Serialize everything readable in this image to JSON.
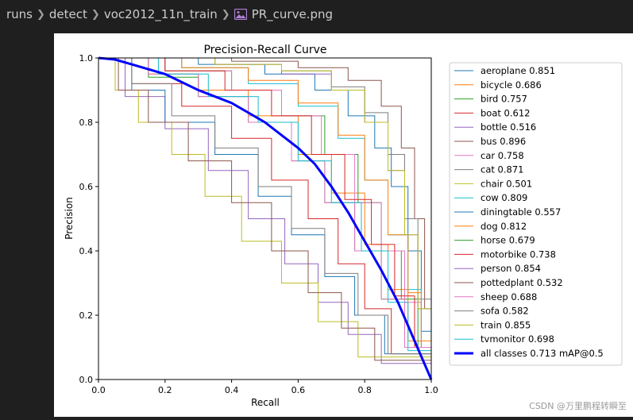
{
  "breadcrumb": {
    "items": [
      "runs",
      "detect",
      "voc2012_11n_train"
    ],
    "file": "PR_curve.png",
    "file_icon": "image-file-icon"
  },
  "watermark": "CSDN @万里鹏程转瞬至",
  "chart_data": {
    "type": "line",
    "title": "Precision-Recall Curve",
    "xlabel": "Recall",
    "ylabel": "Precision",
    "xlim": [
      0,
      1
    ],
    "ylim": [
      0,
      1
    ],
    "xticks": [
      "0.0",
      "0.2",
      "0.4",
      "0.6",
      "0.8",
      "1.0"
    ],
    "yticks": [
      "0.0",
      "0.2",
      "0.4",
      "0.6",
      "0.8",
      "1.0"
    ],
    "grid": false,
    "legend_position": "outside-right",
    "series": [
      {
        "name": "aeroplane 0.851",
        "color": "#1f77b4",
        "x": [
          0,
          0.3,
          0.5,
          0.65,
          0.75,
          0.83,
          0.88,
          0.93,
          0.97,
          1.0
        ],
        "y": [
          1,
          0.98,
          0.95,
          0.9,
          0.82,
          0.72,
          0.6,
          0.4,
          0.15,
          0.0
        ]
      },
      {
        "name": "bicycle 0.686",
        "color": "#ff7f0e",
        "x": [
          0,
          0.15,
          0.3,
          0.45,
          0.6,
          0.7,
          0.8,
          0.87,
          0.93,
          1.0
        ],
        "y": [
          1,
          0.95,
          0.9,
          0.82,
          0.7,
          0.58,
          0.42,
          0.28,
          0.12,
          0.0
        ]
      },
      {
        "name": "bird 0.757",
        "color": "#2ca02c",
        "x": [
          0,
          0.2,
          0.4,
          0.55,
          0.68,
          0.78,
          0.85,
          0.91,
          0.96,
          1.0
        ],
        "y": [
          1,
          0.96,
          0.9,
          0.82,
          0.7,
          0.55,
          0.4,
          0.25,
          0.1,
          0.0
        ]
      },
      {
        "name": "boat 0.612",
        "color": "#d62728",
        "x": [
          0,
          0.1,
          0.25,
          0.4,
          0.52,
          0.63,
          0.72,
          0.8,
          0.88,
          1.0
        ],
        "y": [
          1,
          0.92,
          0.85,
          0.75,
          0.62,
          0.5,
          0.36,
          0.22,
          0.08,
          0.0
        ]
      },
      {
        "name": "bottle 0.516",
        "color": "#9467bd",
        "x": [
          0,
          0.08,
          0.2,
          0.33,
          0.45,
          0.56,
          0.66,
          0.75,
          0.85,
          1.0
        ],
        "y": [
          1,
          0.88,
          0.78,
          0.65,
          0.5,
          0.36,
          0.24,
          0.14,
          0.05,
          0.0
        ]
      },
      {
        "name": "bus 0.896",
        "color": "#8c564b",
        "x": [
          0,
          0.4,
          0.6,
          0.75,
          0.85,
          0.91,
          0.95,
          0.98,
          1.0
        ],
        "y": [
          1,
          0.99,
          0.97,
          0.93,
          0.85,
          0.72,
          0.5,
          0.22,
          0.0
        ]
      },
      {
        "name": "car 0.758",
        "color": "#e377c2",
        "x": [
          0,
          0.2,
          0.4,
          0.55,
          0.67,
          0.77,
          0.85,
          0.92,
          0.97,
          1.0
        ],
        "y": [
          1,
          0.96,
          0.9,
          0.82,
          0.7,
          0.55,
          0.4,
          0.24,
          0.1,
          0.0
        ]
      },
      {
        "name": "cat 0.871",
        "color": "#7f7f7f",
        "x": [
          0,
          0.35,
          0.55,
          0.7,
          0.8,
          0.87,
          0.92,
          0.96,
          1.0
        ],
        "y": [
          1,
          0.98,
          0.96,
          0.91,
          0.83,
          0.7,
          0.5,
          0.25,
          0.0
        ]
      },
      {
        "name": "chair 0.501",
        "color": "#bcbd22",
        "x": [
          0,
          0.05,
          0.12,
          0.22,
          0.32,
          0.43,
          0.55,
          0.66,
          0.78,
          1.0
        ],
        "y": [
          1,
          0.9,
          0.8,
          0.7,
          0.57,
          0.43,
          0.3,
          0.18,
          0.07,
          0.0
        ]
      },
      {
        "name": "cow 0.809",
        "color": "#17becf",
        "x": [
          0,
          0.25,
          0.45,
          0.6,
          0.72,
          0.8,
          0.87,
          0.93,
          0.97,
          1.0
        ],
        "y": [
          1,
          0.97,
          0.92,
          0.85,
          0.75,
          0.62,
          0.45,
          0.28,
          0.1,
          0.0
        ]
      },
      {
        "name": "diningtable 0.557",
        "color": "#1f77b4",
        "x": [
          0,
          0.1,
          0.2,
          0.35,
          0.48,
          0.58,
          0.68,
          0.77,
          0.86,
          1.0
        ],
        "y": [
          1,
          0.9,
          0.8,
          0.7,
          0.57,
          0.45,
          0.32,
          0.2,
          0.08,
          0.0
        ]
      },
      {
        "name": "dog 0.812",
        "color": "#ff7f0e",
        "x": [
          0,
          0.25,
          0.45,
          0.6,
          0.72,
          0.8,
          0.87,
          0.93,
          0.97,
          1.0
        ],
        "y": [
          1,
          0.97,
          0.93,
          0.86,
          0.76,
          0.62,
          0.45,
          0.27,
          0.1,
          0.0
        ]
      },
      {
        "name": "horse 0.679",
        "color": "#2ca02c",
        "x": [
          0,
          0.15,
          0.3,
          0.45,
          0.58,
          0.68,
          0.77,
          0.85,
          0.92,
          1.0
        ],
        "y": [
          1,
          0.94,
          0.88,
          0.8,
          0.68,
          0.55,
          0.4,
          0.25,
          0.1,
          0.0
        ]
      },
      {
        "name": "motorbike 0.738",
        "color": "#d62728",
        "x": [
          0,
          0.2,
          0.38,
          0.52,
          0.64,
          0.74,
          0.82,
          0.89,
          0.95,
          1.0
        ],
        "y": [
          1,
          0.96,
          0.9,
          0.82,
          0.7,
          0.56,
          0.42,
          0.26,
          0.1,
          0.0
        ]
      },
      {
        "name": "person 0.854",
        "color": "#9467bd",
        "x": [
          0,
          0.35,
          0.55,
          0.7,
          0.8,
          0.87,
          0.92,
          0.96,
          1.0
        ],
        "y": [
          1,
          0.98,
          0.95,
          0.9,
          0.8,
          0.65,
          0.45,
          0.22,
          0.0
        ]
      },
      {
        "name": "pottedplant 0.532",
        "color": "#8c564b",
        "x": [
          0,
          0.06,
          0.15,
          0.27,
          0.4,
          0.52,
          0.63,
          0.73,
          0.83,
          1.0
        ],
        "y": [
          1,
          0.9,
          0.8,
          0.68,
          0.55,
          0.4,
          0.27,
          0.16,
          0.06,
          0.0
        ]
      },
      {
        "name": "sheep 0.688",
        "color": "#e377c2",
        "x": [
          0,
          0.15,
          0.3,
          0.45,
          0.58,
          0.68,
          0.77,
          0.85,
          0.92,
          1.0
        ],
        "y": [
          1,
          0.95,
          0.88,
          0.8,
          0.68,
          0.55,
          0.4,
          0.25,
          0.1,
          0.0
        ]
      },
      {
        "name": "sofa 0.582",
        "color": "#7f7f7f",
        "x": [
          0,
          0.1,
          0.22,
          0.35,
          0.48,
          0.58,
          0.68,
          0.78,
          0.87,
          1.0
        ],
        "y": [
          1,
          0.92,
          0.82,
          0.72,
          0.6,
          0.47,
          0.33,
          0.2,
          0.08,
          0.0
        ]
      },
      {
        "name": "train 0.855",
        "color": "#bcbd22",
        "x": [
          0,
          0.35,
          0.55,
          0.7,
          0.8,
          0.87,
          0.92,
          0.96,
          1.0
        ],
        "y": [
          1,
          0.98,
          0.96,
          0.9,
          0.8,
          0.65,
          0.45,
          0.22,
          0.0
        ]
      },
      {
        "name": "tvmonitor 0.698",
        "color": "#17becf",
        "x": [
          0,
          0.18,
          0.33,
          0.48,
          0.6,
          0.7,
          0.79,
          0.87,
          0.93,
          1.0
        ],
        "y": [
          1,
          0.95,
          0.88,
          0.8,
          0.68,
          0.55,
          0.4,
          0.24,
          0.09,
          0.0
        ]
      },
      {
        "name": "all classes 0.713 mAP@0.5",
        "color": "#0000ff",
        "bold": true,
        "x": [
          0,
          0.05,
          0.1,
          0.2,
          0.3,
          0.4,
          0.5,
          0.6,
          0.65,
          0.7,
          0.75,
          0.8,
          0.85,
          0.9,
          0.95,
          1.0
        ],
        "y": [
          1,
          0.995,
          0.98,
          0.95,
          0.9,
          0.86,
          0.8,
          0.72,
          0.67,
          0.6,
          0.52,
          0.43,
          0.34,
          0.24,
          0.12,
          0.0
        ]
      }
    ]
  }
}
